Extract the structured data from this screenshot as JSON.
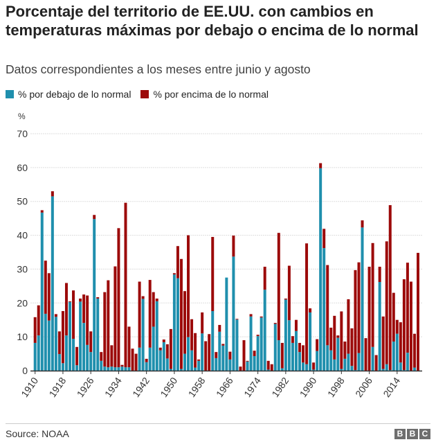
{
  "chart_data": {
    "type": "bar",
    "stacked": true,
    "title": "Porcentaje del territorio de EE.UU. con cambios en temperaturas máximas por debajo o encima de lo normal",
    "subtitle": "Datos correspondientes a los meses entre junio y agosto",
    "ylabel": "%",
    "ylim": [
      0,
      70
    ],
    "yticks": [
      0,
      10,
      20,
      30,
      40,
      50,
      60,
      70
    ],
    "xticks": [
      1910,
      1918,
      1926,
      1934,
      1942,
      1950,
      1958,
      1966,
      1974,
      1982,
      1990,
      1998,
      2006,
      2014
    ],
    "grid": true,
    "legend_position": "top-left",
    "start_year": 1910,
    "series": [
      {
        "name": "% por debajo de lo normal",
        "color": "#1f8fad",
        "values": [
          8.2,
          10.4,
          46.7,
          16.8,
          14.8,
          51.5,
          15.9,
          4.9,
          2.2,
          10.4,
          20.3,
          9.4,
          1.6,
          20.4,
          14.1,
          7.6,
          5.5,
          44.8,
          21.3,
          2.9,
          1.2,
          1,
          1.2,
          1,
          1,
          1.2,
          1,
          1,
          0,
          0,
          6.8,
          21.2,
          2.5,
          6.8,
          13,
          20.5,
          6,
          8.4,
          3.6,
          0.5,
          28.4,
          27.3,
          0.5,
          5,
          9.9,
          6,
          0.9,
          2.9,
          11,
          0,
          0,
          17.6,
          3.7,
          11.5,
          7.4,
          27.5,
          3.3,
          33.7,
          15.1,
          0,
          0,
          2.7,
          16,
          4.3,
          10.2,
          15.7,
          23.9,
          0.3,
          0,
          13.8,
          9,
          0.7,
          21,
          14.9,
          8.2,
          11.7,
          5.5,
          2.4,
          1.9,
          17.2,
          0.3,
          5.8,
          59.8,
          36.2,
          7.5,
          6,
          3.3,
          9.7,
          0.5,
          3.5,
          5,
          1.4,
          0.2,
          5.2,
          42.3,
          0,
          0,
          7,
          0,
          26.2,
          0.5,
          1.9,
          0.2,
          8.6,
          10.9,
          2.4,
          0.2,
          5.3,
          0,
          0.9,
          0
        ]
      },
      {
        "name": "% por encima de lo normal",
        "color": "#9c0a0a",
        "values": [
          7.6,
          8.9,
          0.7,
          15.7,
          14,
          1.5,
          0.8,
          6.7,
          15.4,
          15.5,
          0.2,
          14.3,
          5.4,
          0.9,
          8.4,
          14.6,
          6.1,
          1.2,
          0.4,
          2.6,
          22,
          25.7,
          6.3,
          29.8,
          41.1,
          0.5,
          48.6,
          12,
          6.5,
          5,
          19.5,
          0.8,
          1,
          20,
          10.2,
          0.8,
          0.8,
          0.8,
          4.2,
          11.8,
          0.4,
          9.5,
          32.5,
          18.5,
          30.1,
          9.2,
          10.2,
          0.4,
          6.2,
          8.7,
          10.8,
          21.9,
          1.8,
          2,
          0.5,
          0,
          2.3,
          6.2,
          0.2,
          1.2,
          9,
          0.2,
          0.7,
          1.6,
          0.4,
          0.3,
          6.8,
          2.6,
          1.9,
          0.3,
          31.7,
          7.5,
          0.3,
          16.1,
          2,
          3.3,
          2.7,
          5.1,
          35.7,
          1.2,
          2.1,
          3.5,
          1.5,
          5.7,
          23.7,
          6.7,
          12.9,
          0.7,
          17,
          5.1,
          16.1,
          11.1,
          29.5,
          26.8,
          2.1,
          9.6,
          30.7,
          30.7,
          4.6,
          4.5,
          15.5,
          36.3,
          48.7,
          14.4,
          4.1,
          11.9,
          26.8,
          26.6,
          26.3,
          10,
          34.8
        ]
      }
    ]
  },
  "footer": {
    "source": "Source: NOAA",
    "logo": [
      "B",
      "B",
      "C"
    ]
  }
}
